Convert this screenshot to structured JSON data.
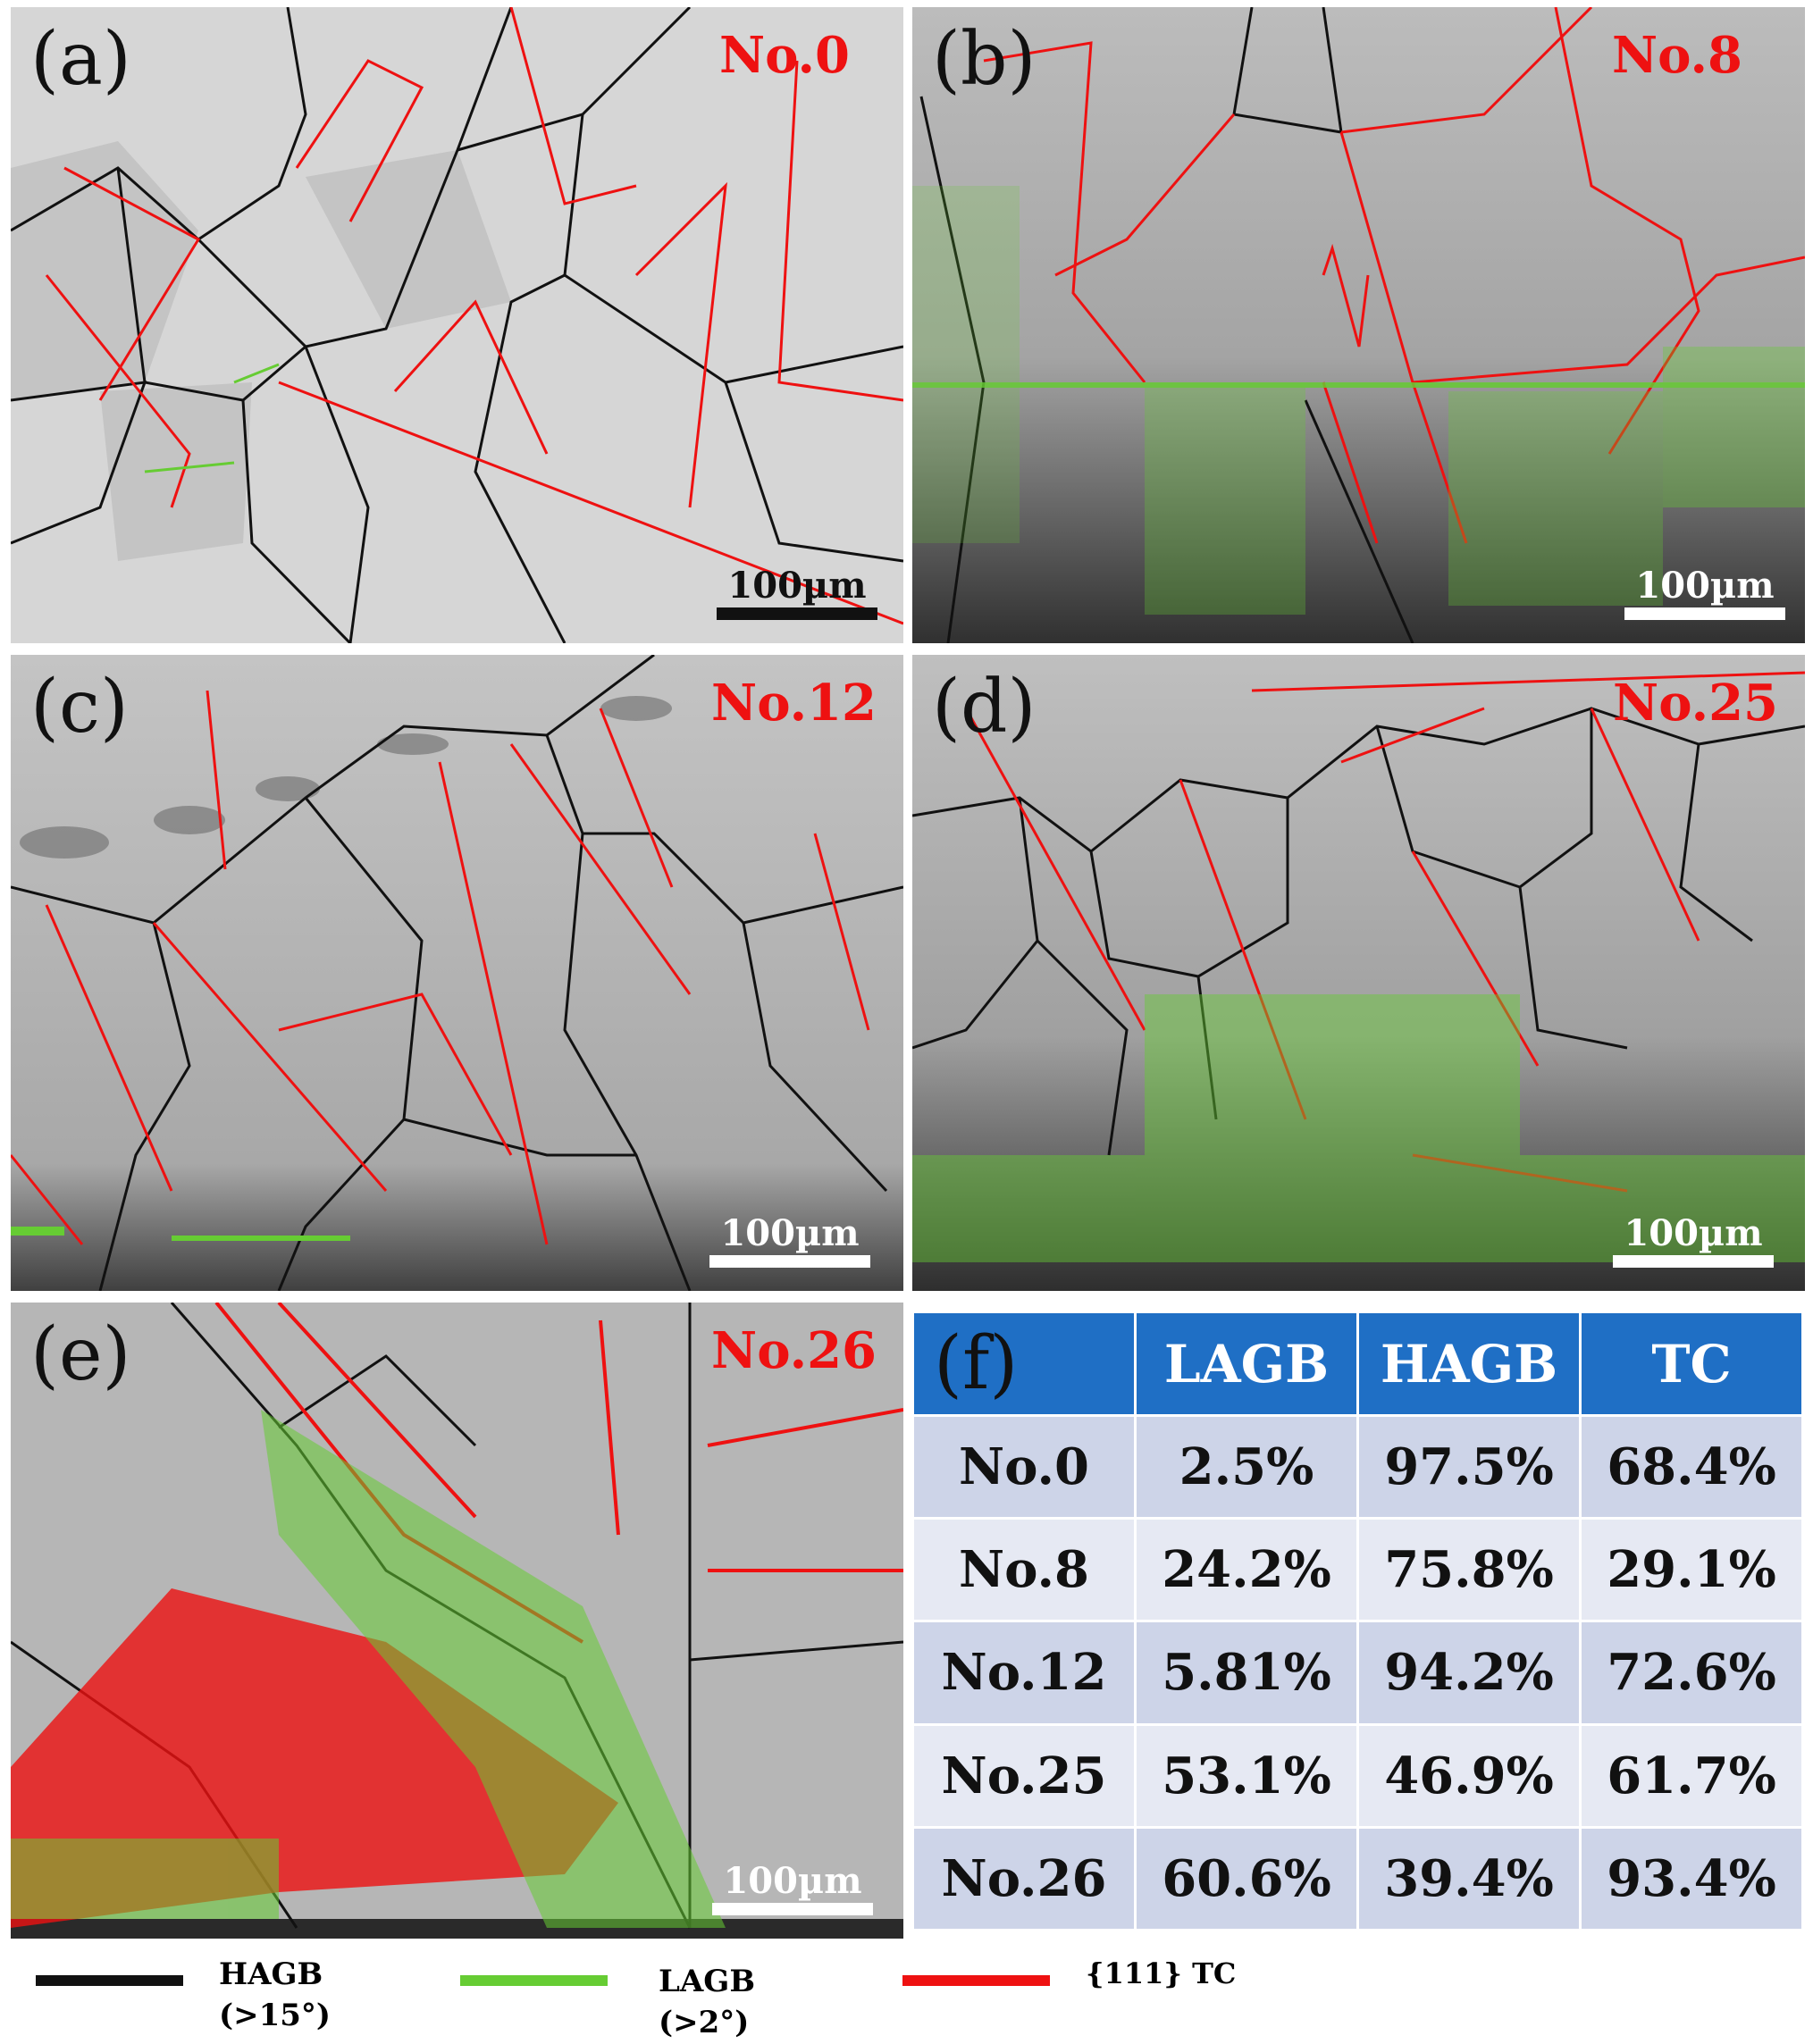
{
  "panels": [
    {
      "id": "a",
      "label": "(a)",
      "sample": "No.0",
      "scale": "100µm"
    },
    {
      "id": "b",
      "label": "(b)",
      "sample": "No.8",
      "scale": "100µm"
    },
    {
      "id": "c",
      "label": "(c)",
      "sample": "No.12",
      "scale": "100µm"
    },
    {
      "id": "d",
      "label": "(d)",
      "sample": "No.25",
      "scale": "100µm"
    },
    {
      "id": "e",
      "label": "(e)",
      "sample": "No.26",
      "scale": "100µm"
    }
  ],
  "table": {
    "label": "(f)",
    "headers": [
      "LAGB",
      "HAGB",
      "TC"
    ],
    "rows": [
      {
        "sample": "No.0",
        "lagb": "2.5%",
        "hagb": "97.5%",
        "tc": "68.4%"
      },
      {
        "sample": "No.8",
        "lagb": "24.2%",
        "hagb": "75.8%",
        "tc": "29.1%"
      },
      {
        "sample": "No.12",
        "lagb": "5.81%",
        "hagb": "94.2%",
        "tc": "72.6%"
      },
      {
        "sample": "No.25",
        "lagb": "53.1%",
        "hagb": "46.9%",
        "tc": "61.7%"
      },
      {
        "sample": "No.26",
        "lagb": "60.6%",
        "hagb": "39.4%",
        "tc": "93.4%"
      }
    ]
  },
  "legend": [
    {
      "name": "HAGB",
      "note": "(>15°)",
      "color": "#111111"
    },
    {
      "name": "LAGB",
      "note": "(>2°)",
      "color": "#66cc33"
    },
    {
      "name": "{111} TC",
      "note": "",
      "color": "#ee1111"
    }
  ],
  "colors": {
    "hagb": "#111111",
    "lagb": "#66cc33",
    "tc": "#ee1111",
    "header": "#1f6fc5"
  }
}
